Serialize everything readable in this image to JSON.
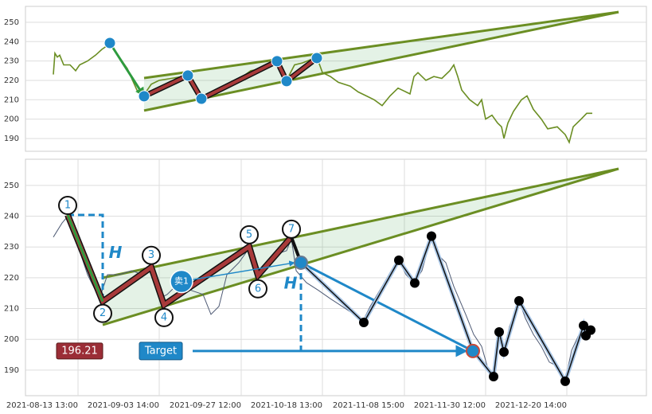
{
  "chart_data": [
    {
      "type": "line",
      "x": [
        35,
        37,
        40,
        43,
        48,
        56,
        63,
        68,
        78,
        88,
        96,
        103,
        106,
        128,
        140,
        148,
        158,
        168,
        183,
        198,
        204,
        213,
        221,
        233,
        248,
        263,
        273,
        283,
        298,
        316,
        323,
        328,
        338,
        348,
        366,
        373,
        383,
        393,
        408,
        418,
        428,
        438,
        448,
        458,
        468,
        478,
        483,
        488,
        493,
        503,
        513,
        523,
        533,
        538,
        543,
        548,
        558,
        568,
        573,
        578,
        586,
        593,
        598,
        601,
        606,
        613,
        623,
        630,
        638,
        648,
        656,
        668,
        678,
        683,
        688,
        698,
        705,
        712
      ],
      "values": [
        223,
        234,
        232,
        233,
        228,
        228,
        225,
        228,
        230,
        233,
        236,
        238,
        239,
        226,
        215,
        212,
        218,
        220,
        221,
        222,
        223,
        215,
        211,
        214,
        216,
        218,
        222,
        225,
        226,
        230,
        224,
        220,
        228,
        229,
        232,
        224,
        222,
        219,
        217,
        214,
        212,
        210,
        207,
        212,
        216,
        214,
        213,
        222,
        224,
        220,
        222,
        221,
        225,
        228,
        222,
        215,
        210,
        207,
        210,
        200,
        202,
        198,
        196,
        190,
        198,
        204,
        210,
        212,
        205,
        200,
        195,
        196,
        192,
        188,
        196,
        200,
        203,
        203
      ],
      "color": "#6b8e23",
      "xlim": [
        0,
        780
      ],
      "ylim": [
        183.4,
        258.2
      ],
      "yticks": [
        190,
        200,
        210,
        220,
        230,
        240,
        250
      ],
      "grid": true,
      "pivots": {
        "x": [
          106,
          149,
          204,
          221,
          316,
          328,
          366
        ],
        "values": [
          239.3,
          211.8,
          222.5,
          210.5,
          229.9,
          219.6,
          231.5
        ],
        "color": "#1f88c8"
      },
      "wedge": {
        "x": [
          149,
          745
        ],
        "upper": [
          221.2,
          255.3
        ],
        "lower": [
          204.4,
          255.3
        ],
        "color": "#6b8e23"
      }
    },
    {
      "type": "line",
      "x": [
        35,
        40,
        46,
        53,
        63,
        78,
        93,
        103,
        118,
        133,
        148,
        158,
        168,
        178,
        193,
        208,
        223,
        233,
        243,
        253,
        268,
        281,
        286,
        293,
        303,
        313,
        328,
        334,
        340,
        353,
        368,
        383,
        398,
        413,
        423,
        433,
        448,
        468,
        478,
        488,
        498,
        510,
        518,
        528,
        538,
        553,
        563,
        573,
        580,
        588,
        595,
        601,
        608,
        620,
        628,
        638,
        648,
        658,
        668,
        678,
        686,
        693,
        701,
        708,
        713
      ],
      "values": [
        233.2,
        235.3,
        237.8,
        239.9,
        232.6,
        221,
        213.2,
        221,
        221,
        222.3,
        221,
        222.3,
        213.2,
        214.6,
        218.4,
        215.9,
        214.6,
        208.1,
        210.7,
        221,
        224.9,
        229.6,
        224.9,
        219.7,
        223.6,
        227.5,
        228.8,
        232.7,
        222.3,
        218.4,
        215.9,
        213.2,
        210.7,
        208.1,
        205.5,
        210.7,
        217.2,
        226.2,
        221,
        218.4,
        222.3,
        233.4,
        227.5,
        224.9,
        217.2,
        208.1,
        201.6,
        197.7,
        191.3,
        188.7,
        201.6,
        196.4,
        204.2,
        212.5,
        206.8,
        201.6,
        197.7,
        192.6,
        191.3,
        186.6,
        196.4,
        200.3,
        204.7,
        202.9,
        201.6
      ],
      "color": "#4f5b75",
      "xlim": [
        0,
        780
      ],
      "ylim": [
        181.7,
        258.5
      ],
      "xticks": [
        {
          "value": 66,
          "label": "2021-08-13 13:00"
        },
        {
          "value": 168,
          "label": "2021-09-03 14:00"
        },
        {
          "value": 271,
          "label": "2021-09-27 12:00"
        },
        {
          "value": 373,
          "label": "2021-10-18 13:00"
        },
        {
          "value": 476,
          "label": "2021-11-08 15:00"
        },
        {
          "value": 578,
          "label": "2021-11-30 12:00"
        },
        {
          "value": 680,
          "label": "2021-12-20 14:00"
        }
      ],
      "yticks": [
        190,
        200,
        210,
        220,
        230,
        240,
        250
      ],
      "grid": true,
      "pattern": {
        "labels": [
          "1",
          "2",
          "3",
          "4",
          "5",
          "6",
          "7"
        ],
        "x": [
          53,
          97,
          158,
          174,
          281,
          292,
          334
        ],
        "values": [
          240.4,
          212.3,
          223.4,
          211.2,
          230.1,
          220.8,
          233.2
        ],
        "color": "#9b2d2d"
      },
      "wedge": {
        "x": [
          97,
          745
        ],
        "upper": [
          220.0,
          255.4
        ],
        "lower": [
          204.7,
          255.4
        ],
        "color": "#6b8e23"
      },
      "height_label": "H",
      "zigzag": {
        "x": [
          346,
          425,
          469,
          489,
          510,
          562,
          588,
          595,
          601,
          620,
          678,
          701,
          704,
          710
        ],
        "values": [
          224.9,
          205.5,
          225.7,
          218.3,
          233.5,
          196.4,
          187.9,
          202.4,
          195.9,
          212.5,
          186.4,
          204.5,
          201.2,
          203
        ]
      },
      "sell": {
        "label": "卖1",
        "x": 196,
        "value": 218.8
      },
      "target": {
        "label": "Target",
        "x": 562,
        "value": 196.21
      }
    }
  ]
}
